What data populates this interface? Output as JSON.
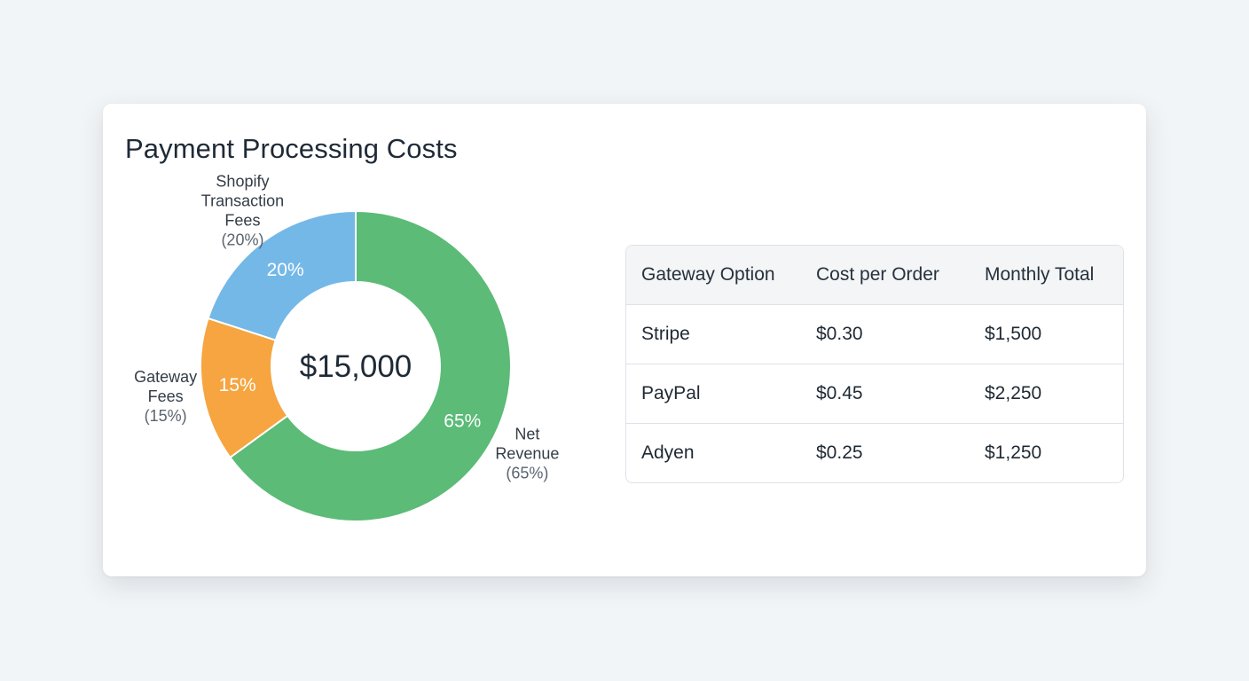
{
  "card": {
    "title": "Payment Processing Costs"
  },
  "chart_data": {
    "type": "pie",
    "variant": "donut",
    "center_label": "$15,000",
    "start_angle_deg": 0,
    "direction": "clockwise",
    "slices": [
      {
        "name": "Net Revenue",
        "value": 65,
        "label": "65%",
        "legend_name": [
          "Net",
          "Revenue"
        ],
        "legend_pct": "(65%)",
        "color": "#5bbb77"
      },
      {
        "name": "Gateway Fees",
        "value": 15,
        "label": "15%",
        "legend_name": [
          "Gateway",
          "Fees"
        ],
        "legend_pct": "(15%)",
        "color": "#f6a540"
      },
      {
        "name": "Shopify Transaction Fees",
        "value": 20,
        "label": "20%",
        "legend_name": [
          "Shopify",
          "Transaction",
          "Fees"
        ],
        "legend_pct": "(20%)",
        "color": "#74b8e8"
      }
    ]
  },
  "table": {
    "headers": [
      "Gateway Option",
      "Cost per Order",
      "Monthly Total"
    ],
    "rows": [
      [
        "Stripe",
        "$0.30",
        "$1,500"
      ],
      [
        "PayPal",
        "$0.45",
        "$2,250"
      ],
      [
        "Adyen",
        "$0.25",
        "$1,250"
      ]
    ]
  }
}
